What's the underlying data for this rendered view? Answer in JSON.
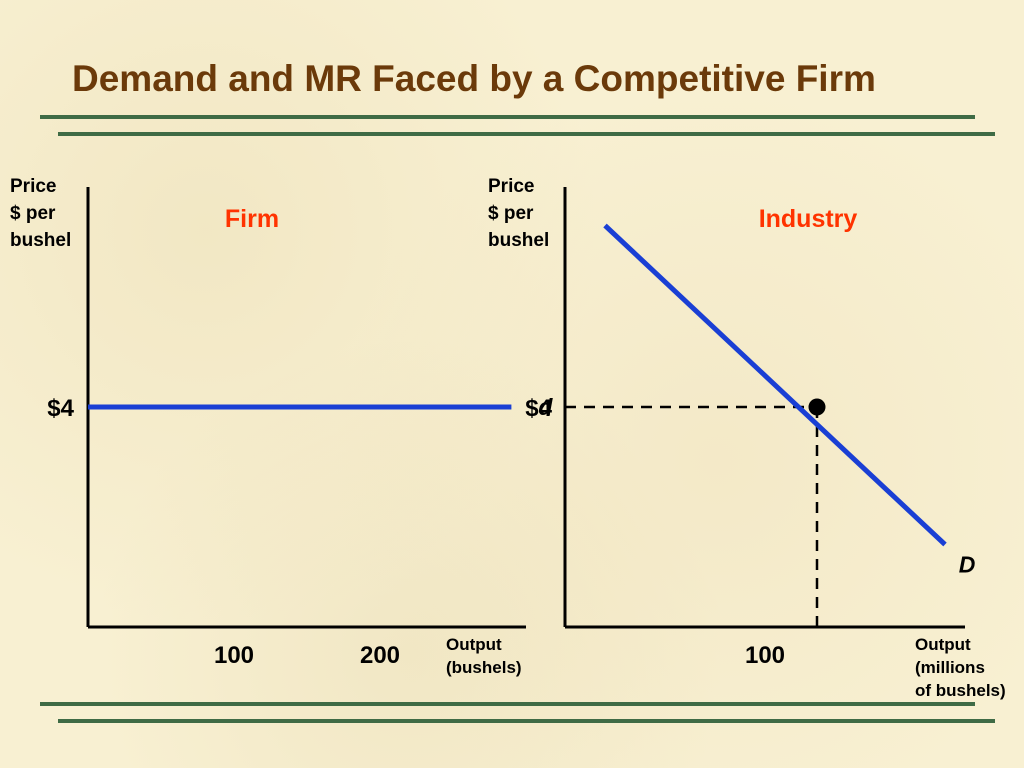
{
  "slide": {
    "title": "Demand and MR Faced by a Competitive Firm"
  },
  "colors": {
    "title": "#6b3a0a",
    "rule": "#3f6b45",
    "panel_title": "#ff3300",
    "curve": "#1a3fd4",
    "axis": "#000000",
    "background": "#f8f0d2"
  },
  "chart_data": [
    {
      "type": "line",
      "title": "Firm",
      "ylabel": [
        "Price",
        "$ per",
        "bushel"
      ],
      "xlabel": [
        "Output",
        "(bushels)"
      ],
      "xlim": [
        0,
        300
      ],
      "ylim": [
        0,
        8
      ],
      "x_ticks": [
        100,
        200
      ],
      "x_tick_labels": [
        "100",
        "200"
      ],
      "y_ticks": [
        4
      ],
      "y_tick_labels": [
        "$4"
      ],
      "series": [
        {
          "name": "d",
          "x": [
            0,
            290
          ],
          "y": [
            4,
            4
          ]
        }
      ]
    },
    {
      "type": "line",
      "title": "Industry",
      "ylabel": [
        "Price",
        "$ per",
        "bushel"
      ],
      "xlabel": [
        "Output",
        "(millions",
        "of bushels)"
      ],
      "xlim": [
        0,
        200
      ],
      "ylim": [
        0,
        8
      ],
      "x_ticks": [
        100
      ],
      "x_tick_labels": [
        "100"
      ],
      "y_ticks": [
        4
      ],
      "y_tick_labels": [
        "$4"
      ],
      "series": [
        {
          "name": "D",
          "x": [
            20,
            190
          ],
          "y": [
            7.3,
            1.5
          ]
        }
      ],
      "equilibrium": {
        "x": 126,
        "y": 4
      }
    }
  ]
}
